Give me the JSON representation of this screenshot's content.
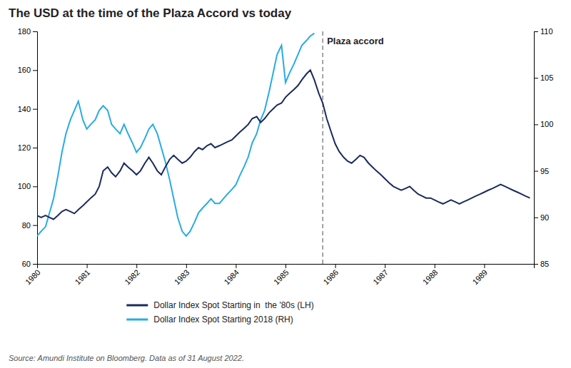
{
  "chart_data": {
    "type": "line",
    "title": "The USD at the time of the Plaza Accord vs today",
    "source": "Source: Amundi Institute on Bloomberg. Data as of 31 August 2022.",
    "xlim": [
      1980.0,
      1990.0
    ],
    "xticks": [
      1980,
      1981,
      1982,
      1983,
      1984,
      1985,
      1986,
      1987,
      1988,
      1989
    ],
    "ylim": [
      60,
      180
    ],
    "yticks": [
      60,
      80,
      100,
      120,
      140,
      160,
      180
    ],
    "y2lim": [
      85,
      110
    ],
    "y2ticks": [
      85,
      90,
      95,
      100,
      105,
      110
    ],
    "grid": false,
    "legend": "bottom",
    "annotations": [
      {
        "text": "Plaza accord",
        "x": 1985.75,
        "line_style": "dashed",
        "color": "#888888"
      }
    ],
    "series": [
      {
        "name": "Dollar Index Spot Starting in  the '80s (LH)",
        "color": "#1b2a5e",
        "axis": "y",
        "x": [
          1980.0,
          1980.08,
          1980.17,
          1980.25,
          1980.33,
          1980.42,
          1980.5,
          1980.58,
          1980.67,
          1980.75,
          1980.83,
          1980.92,
          1981.0,
          1981.08,
          1981.17,
          1981.25,
          1981.33,
          1981.42,
          1981.5,
          1981.58,
          1981.67,
          1981.75,
          1981.83,
          1981.92,
          1982.0,
          1982.08,
          1982.17,
          1982.25,
          1982.33,
          1982.42,
          1982.5,
          1982.58,
          1982.67,
          1982.75,
          1982.83,
          1982.92,
          1983.0,
          1983.08,
          1983.17,
          1983.25,
          1983.33,
          1983.42,
          1983.5,
          1983.58,
          1983.67,
          1983.75,
          1983.83,
          1983.92,
          1984.0,
          1984.08,
          1984.17,
          1984.25,
          1984.33,
          1984.42,
          1984.5,
          1984.58,
          1984.67,
          1984.75,
          1984.83,
          1984.92,
          1985.0,
          1985.08,
          1985.17,
          1985.25,
          1985.33,
          1985.42,
          1985.5,
          1985.58,
          1985.67,
          1985.75,
          1985.83,
          1985.92,
          1986.0,
          1986.08,
          1986.17,
          1986.25,
          1986.33,
          1986.42,
          1986.5,
          1986.58,
          1986.67,
          1986.75,
          1986.83,
          1986.92,
          1987.0,
          1987.08,
          1987.17,
          1987.25,
          1987.33,
          1987.42,
          1987.5,
          1987.58,
          1987.67,
          1987.75,
          1987.83,
          1987.92,
          1988.0,
          1988.08,
          1988.17,
          1988.25,
          1988.33,
          1988.42,
          1988.5,
          1988.58,
          1988.67,
          1988.75,
          1988.83,
          1988.92,
          1989.0,
          1989.08,
          1989.17,
          1989.25,
          1989.33,
          1989.42,
          1989.5,
          1989.58,
          1989.67,
          1989.75,
          1989.83,
          1989.92
        ],
        "values": [
          85,
          84,
          85,
          84,
          83,
          85,
          87,
          88,
          87,
          86,
          88,
          90,
          92,
          94,
          96,
          100,
          108,
          110,
          107,
          105,
          108,
          112,
          110,
          108,
          106,
          108,
          112,
          115,
          112,
          108,
          106,
          110,
          114,
          116,
          114,
          112,
          113,
          115,
          118,
          120,
          119,
          121,
          122,
          120,
          121,
          122,
          123,
          124,
          126,
          128,
          130,
          132,
          135,
          136,
          133,
          135,
          138,
          140,
          142,
          143,
          146,
          148,
          150,
          152,
          155,
          158,
          160,
          155,
          148,
          143,
          135,
          128,
          122,
          118,
          115,
          113,
          112,
          114,
          116,
          115,
          112,
          110,
          108,
          106,
          104,
          102,
          100,
          99,
          98,
          99,
          100,
          98,
          96,
          95,
          94,
          94,
          93,
          92,
          91,
          92,
          93,
          92,
          91,
          92,
          93,
          94,
          95,
          96,
          97,
          98,
          99,
          100,
          101,
          100,
          99,
          98,
          97,
          96,
          95,
          94
        ]
      },
      {
        "name": "Dollar Index Spot Starting 2018 (RH)",
        "color": "#29abe2",
        "axis": "y2",
        "x": [
          1980.0,
          1980.08,
          1980.17,
          1980.25,
          1980.33,
          1980.42,
          1980.5,
          1980.58,
          1980.67,
          1980.75,
          1980.83,
          1980.92,
          1981.0,
          1981.08,
          1981.17,
          1981.25,
          1981.33,
          1981.42,
          1981.5,
          1981.58,
          1981.67,
          1981.75,
          1981.83,
          1981.92,
          1982.0,
          1982.08,
          1982.17,
          1982.25,
          1982.33,
          1982.42,
          1982.5,
          1982.58,
          1982.67,
          1982.75,
          1982.83,
          1982.92,
          1983.0,
          1983.08,
          1983.17,
          1983.25,
          1983.33,
          1983.42,
          1983.5,
          1983.58,
          1983.67,
          1983.75,
          1983.83,
          1983.92,
          1984.0,
          1984.08,
          1984.17,
          1984.25,
          1984.33,
          1984.42,
          1984.5,
          1984.58,
          1984.67,
          1984.75,
          1984.83,
          1984.92,
          1985.0,
          1985.08,
          1985.17,
          1985.25,
          1985.33,
          1985.42,
          1985.5,
          1985.58
        ],
        "values": [
          88.0,
          88.5,
          89.0,
          90.5,
          92.0,
          94.5,
          97.0,
          99.0,
          100.5,
          101.5,
          102.5,
          100.5,
          99.5,
          100.0,
          100.5,
          101.5,
          102.0,
          101.5,
          100.0,
          99.5,
          99.0,
          100.0,
          99.0,
          98.0,
          97.0,
          97.5,
          98.5,
          99.5,
          100.0,
          99.0,
          97.5,
          96.0,
          94.0,
          92.0,
          90.0,
          88.5,
          88.0,
          88.5,
          89.5,
          90.5,
          91.0,
          91.5,
          92.0,
          91.5,
          91.5,
          92.0,
          92.5,
          93.0,
          93.5,
          94.5,
          95.5,
          96.5,
          98.0,
          99.0,
          100.5,
          101.5,
          103.5,
          105.5,
          107.5,
          108.5,
          104.5,
          105.5,
          106.5,
          107.5,
          108.5,
          109.0,
          109.5,
          109.8
        ]
      }
    ]
  }
}
